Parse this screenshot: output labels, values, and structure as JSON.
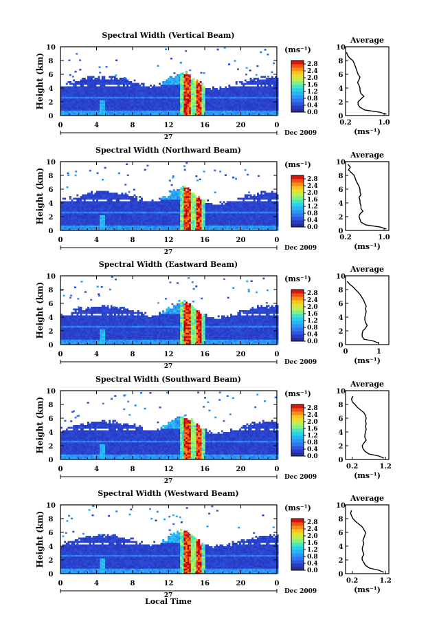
{
  "chart_data": [
    {
      "type": "heatmap",
      "title": "Spectral Width (Vertical Beam)",
      "ylabel": "Height (km)",
      "xticks": [
        "0",
        "4",
        "8",
        "12",
        "16",
        "20",
        "0"
      ],
      "yticks": [
        "0",
        "2",
        "4",
        "6",
        "8",
        "10"
      ],
      "xlim": [
        0,
        24
      ],
      "ylim": [
        0,
        10
      ],
      "date_label": "27",
      "month_label": "Dec 2009",
      "colorbar": {
        "unit": "(ms⁻¹)",
        "ticks": [
          "0.0",
          "0.4",
          "0.8",
          "1.2",
          "1.6",
          "2.0",
          "2.4",
          "2.8"
        ],
        "range": [
          0,
          3.0
        ]
      },
      "average": {
        "title": "Average",
        "xlabel": "(ms⁻¹)",
        "xticks": [
          "0.2",
          "1.0"
        ],
        "xlim": [
          0.2,
          1.1
        ],
        "profile": [
          {
            "h": 0.2,
            "v": 1.05
          },
          {
            "h": 0.5,
            "v": 0.9
          },
          {
            "h": 0.8,
            "v": 0.6
          },
          {
            "h": 1.2,
            "v": 0.5
          },
          {
            "h": 1.6,
            "v": 0.46
          },
          {
            "h": 2.0,
            "v": 0.46
          },
          {
            "h": 2.4,
            "v": 0.52
          },
          {
            "h": 2.8,
            "v": 0.58
          },
          {
            "h": 3.2,
            "v": 0.52
          },
          {
            "h": 3.6,
            "v": 0.5
          },
          {
            "h": 4.0,
            "v": 0.5
          },
          {
            "h": 4.4,
            "v": 0.48
          },
          {
            "h": 4.8,
            "v": 0.45
          },
          {
            "h": 5.2,
            "v": 0.48
          },
          {
            "h": 5.6,
            "v": 0.5
          },
          {
            "h": 6.0,
            "v": 0.46
          },
          {
            "h": 6.4,
            "v": 0.44
          },
          {
            "h": 6.8,
            "v": 0.42
          },
          {
            "h": 7.2,
            "v": 0.4
          },
          {
            "h": 7.6,
            "v": 0.38
          },
          {
            "h": 8.0,
            "v": 0.35
          },
          {
            "h": 8.4,
            "v": 0.28
          },
          {
            "h": 8.8,
            "v": 0.24
          },
          {
            "h": 9.2,
            "v": 0.22
          }
        ]
      }
    },
    {
      "type": "heatmap",
      "title": "Spectral Width (Northward Beam)",
      "ylabel": "Height (km)",
      "xticks": [
        "0",
        "4",
        "8",
        "12",
        "16",
        "20",
        "0"
      ],
      "yticks": [
        "0",
        "2",
        "4",
        "6",
        "8",
        "10"
      ],
      "xlim": [
        0,
        24
      ],
      "ylim": [
        0,
        10
      ],
      "date_label": "27",
      "month_label": "Dec 2009",
      "colorbar": {
        "unit": "(ms⁻¹)",
        "ticks": [
          "0.0",
          "0.4",
          "0.8",
          "1.2",
          "1.6",
          "2.0",
          "2.4",
          "2.8"
        ],
        "range": [
          0,
          3.0
        ]
      },
      "average": {
        "title": "Average",
        "xlabel": "(ms⁻¹)",
        "xticks": [
          "0.2",
          "1.0"
        ],
        "xlim": [
          0.2,
          1.1
        ],
        "profile": [
          {
            "h": 0.2,
            "v": 1.05
          },
          {
            "h": 0.5,
            "v": 0.92
          },
          {
            "h": 0.8,
            "v": 0.62
          },
          {
            "h": 1.2,
            "v": 0.52
          },
          {
            "h": 1.6,
            "v": 0.5
          },
          {
            "h": 2.0,
            "v": 0.48
          },
          {
            "h": 2.4,
            "v": 0.5
          },
          {
            "h": 2.8,
            "v": 0.56
          },
          {
            "h": 3.2,
            "v": 0.52
          },
          {
            "h": 3.6,
            "v": 0.52
          },
          {
            "h": 4.0,
            "v": 0.5
          },
          {
            "h": 4.4,
            "v": 0.5
          },
          {
            "h": 4.8,
            "v": 0.48
          },
          {
            "h": 5.2,
            "v": 0.52
          },
          {
            "h": 5.6,
            "v": 0.5
          },
          {
            "h": 6.0,
            "v": 0.5
          },
          {
            "h": 6.4,
            "v": 0.48
          },
          {
            "h": 6.8,
            "v": 0.45
          },
          {
            "h": 7.2,
            "v": 0.42
          },
          {
            "h": 7.6,
            "v": 0.4
          },
          {
            "h": 8.0,
            "v": 0.38
          },
          {
            "h": 8.4,
            "v": 0.32
          },
          {
            "h": 8.8,
            "v": 0.26
          },
          {
            "h": 9.2,
            "v": 0.3
          },
          {
            "h": 9.6,
            "v": 0.25
          }
        ]
      }
    },
    {
      "type": "heatmap",
      "title": "Spectral Width (Eastward Beam)",
      "ylabel": "Height (km)",
      "xticks": [
        "0",
        "4",
        "8",
        "12",
        "16",
        "20",
        "0"
      ],
      "yticks": [
        "0",
        "2",
        "4",
        "6",
        "8",
        "10"
      ],
      "xlim": [
        0,
        24
      ],
      "ylim": [
        0,
        10
      ],
      "date_label": "27",
      "month_label": "Dec 2009",
      "colorbar": {
        "unit": "(ms⁻¹)",
        "ticks": [
          "0.0",
          "0.4",
          "0.8",
          "1.2",
          "1.6",
          "2.0",
          "2.4",
          "2.8"
        ],
        "range": [
          0,
          3.0
        ]
      },
      "average": {
        "title": "Average",
        "xlabel": "(ms⁻¹)",
        "xticks": [
          "0",
          "1"
        ],
        "xlim": [
          0,
          1.3
        ],
        "profile": [
          {
            "h": 0.2,
            "v": 1.0
          },
          {
            "h": 0.5,
            "v": 0.85
          },
          {
            "h": 0.8,
            "v": 0.55
          },
          {
            "h": 1.2,
            "v": 0.5
          },
          {
            "h": 1.6,
            "v": 0.5
          },
          {
            "h": 2.0,
            "v": 0.52
          },
          {
            "h": 2.4,
            "v": 0.6
          },
          {
            "h": 2.8,
            "v": 0.65
          },
          {
            "h": 3.2,
            "v": 0.6
          },
          {
            "h": 3.6,
            "v": 0.58
          },
          {
            "h": 4.0,
            "v": 0.58
          },
          {
            "h": 4.4,
            "v": 0.6
          },
          {
            "h": 4.8,
            "v": 0.62
          },
          {
            "h": 5.2,
            "v": 0.6
          },
          {
            "h": 5.6,
            "v": 0.62
          },
          {
            "h": 6.0,
            "v": 0.58
          },
          {
            "h": 6.4,
            "v": 0.55
          },
          {
            "h": 6.8,
            "v": 0.5
          },
          {
            "h": 7.2,
            "v": 0.45
          },
          {
            "h": 7.6,
            "v": 0.38
          },
          {
            "h": 8.0,
            "v": 0.3
          },
          {
            "h": 8.4,
            "v": 0.22
          },
          {
            "h": 8.8,
            "v": 0.12
          },
          {
            "h": 9.2,
            "v": 0.05
          }
        ]
      }
    },
    {
      "type": "heatmap",
      "title": "Spectral Width (Southward Beam)",
      "ylabel": "Height (km)",
      "xticks": [
        "0",
        "4",
        "8",
        "12",
        "16",
        "20",
        "0"
      ],
      "yticks": [
        "0",
        "2",
        "4",
        "6",
        "8",
        "10"
      ],
      "xlim": [
        0,
        24
      ],
      "ylim": [
        0,
        10
      ],
      "date_label": "27",
      "month_label": "Dec 2009",
      "colorbar": {
        "unit": "(ms⁻¹)",
        "ticks": [
          "0.0",
          "0.4",
          "0.8",
          "1.2",
          "1.6",
          "2.0",
          "2.4",
          "2.8"
        ],
        "range": [
          0,
          3.0
        ]
      },
      "average": {
        "title": "Average",
        "xlabel": "(ms⁻¹)",
        "xticks": [
          "0.2",
          "1.2"
        ],
        "xlim": [
          0.0,
          1.3
        ],
        "profile": [
          {
            "h": 0.2,
            "v": 1.15
          },
          {
            "h": 0.5,
            "v": 1.0
          },
          {
            "h": 0.8,
            "v": 0.7
          },
          {
            "h": 1.2,
            "v": 0.58
          },
          {
            "h": 1.6,
            "v": 0.52
          },
          {
            "h": 2.0,
            "v": 0.5
          },
          {
            "h": 2.4,
            "v": 0.55
          },
          {
            "h": 2.8,
            "v": 0.62
          },
          {
            "h": 3.2,
            "v": 0.58
          },
          {
            "h": 3.6,
            "v": 0.58
          },
          {
            "h": 4.0,
            "v": 0.6
          },
          {
            "h": 4.4,
            "v": 0.62
          },
          {
            "h": 4.8,
            "v": 0.6
          },
          {
            "h": 5.2,
            "v": 0.62
          },
          {
            "h": 5.6,
            "v": 0.6
          },
          {
            "h": 6.0,
            "v": 0.62
          },
          {
            "h": 6.4,
            "v": 0.6
          },
          {
            "h": 6.8,
            "v": 0.55
          },
          {
            "h": 7.2,
            "v": 0.45
          },
          {
            "h": 7.6,
            "v": 0.35
          },
          {
            "h": 8.0,
            "v": 0.28
          },
          {
            "h": 8.4,
            "v": 0.2
          },
          {
            "h": 8.8,
            "v": 0.18
          },
          {
            "h": 9.2,
            "v": 0.22
          }
        ]
      }
    },
    {
      "type": "heatmap",
      "title": "Spectral Width (Westward Beam)",
      "ylabel": "Height (km)",
      "xticks": [
        "0",
        "4",
        "8",
        "12",
        "16",
        "20",
        "0"
      ],
      "yticks": [
        "0",
        "2",
        "4",
        "6",
        "8",
        "10"
      ],
      "xlim": [
        0,
        24
      ],
      "ylim": [
        0,
        10
      ],
      "date_label": "27",
      "month_label": "Dec 2009",
      "colorbar": {
        "unit": "(ms⁻¹)",
        "ticks": [
          "0.0",
          "0.4",
          "0.8",
          "1.2",
          "1.6",
          "2.0",
          "2.4",
          "2.8"
        ],
        "range": [
          0,
          3.0
        ]
      },
      "average": {
        "title": "Average",
        "xlabel": "(ms⁻¹)",
        "xticks": [
          "0.2",
          "1.2"
        ],
        "xlim": [
          0.0,
          1.3
        ],
        "profile": [
          {
            "h": 0.2,
            "v": 1.15
          },
          {
            "h": 0.5,
            "v": 1.0
          },
          {
            "h": 0.8,
            "v": 0.72
          },
          {
            "h": 1.2,
            "v": 0.6
          },
          {
            "h": 1.6,
            "v": 0.55
          },
          {
            "h": 2.0,
            "v": 0.5
          },
          {
            "h": 2.4,
            "v": 0.5
          },
          {
            "h": 2.8,
            "v": 0.55
          },
          {
            "h": 3.2,
            "v": 0.52
          },
          {
            "h": 3.6,
            "v": 0.5
          },
          {
            "h": 4.0,
            "v": 0.52
          },
          {
            "h": 4.4,
            "v": 0.55
          },
          {
            "h": 4.8,
            "v": 0.52
          },
          {
            "h": 5.2,
            "v": 0.55
          },
          {
            "h": 5.6,
            "v": 0.58
          },
          {
            "h": 6.0,
            "v": 0.6
          },
          {
            "h": 6.4,
            "v": 0.55
          },
          {
            "h": 6.8,
            "v": 0.5
          },
          {
            "h": 7.2,
            "v": 0.4
          },
          {
            "h": 7.6,
            "v": 0.3
          },
          {
            "h": 8.0,
            "v": 0.22
          },
          {
            "h": 8.4,
            "v": 0.18
          },
          {
            "h": 8.8,
            "v": 0.15
          },
          {
            "h": 9.2,
            "v": 0.18
          }
        ]
      }
    }
  ],
  "footer": {
    "xlabel": "Local Time"
  }
}
